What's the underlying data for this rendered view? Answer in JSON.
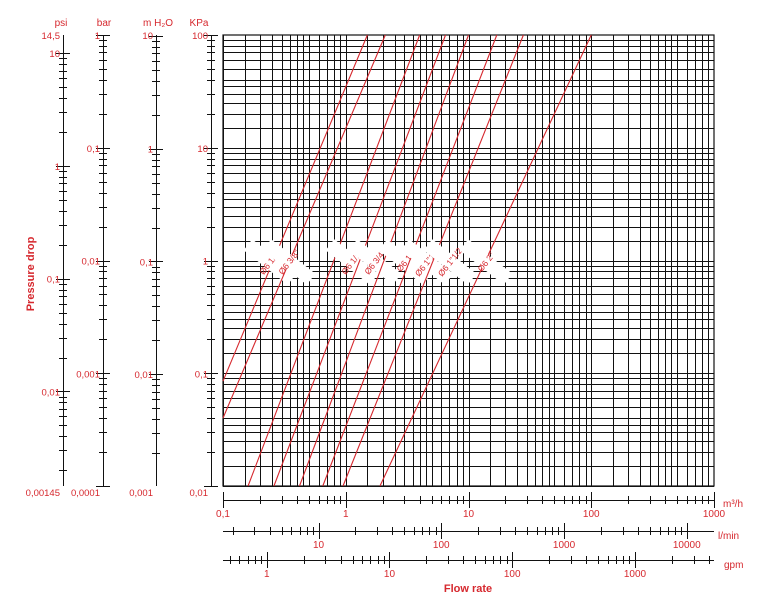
{
  "chart_data": {
    "type": "line",
    "title": "",
    "xlabel": "Flow rate",
    "ylabel": "Pressure drop",
    "log_x": true,
    "log_y": true,
    "grid": true,
    "xlim": [
      0.1,
      1000
    ],
    "ylim": [
      0.01,
      100
    ],
    "x_unit": "m³/h",
    "y_unit": "KPa",
    "y_axes": [
      {
        "unit": "psi",
        "ticks": [
          "14,5",
          "10",
          "1",
          "0,1",
          "0,01",
          "0,00145"
        ]
      },
      {
        "unit": "bar",
        "ticks": [
          "1",
          "0,1",
          "0,01",
          "0,001",
          "0,0001"
        ]
      },
      {
        "unit": "m H₂O",
        "ticks": [
          "10",
          "1",
          "0,1",
          "0,01",
          "0,001"
        ]
      },
      {
        "unit": "KPa",
        "ticks": [
          "100",
          "10",
          "1",
          "0,1",
          "0,01"
        ]
      }
    ],
    "x_axes": [
      {
        "unit": "m³/h",
        "ticks": [
          "0,1",
          "1",
          "10",
          "100",
          "1000"
        ]
      },
      {
        "unit": "l/min",
        "ticks": [
          "10",
          "100",
          "1000",
          "10000"
        ]
      },
      {
        "unit": "gpm",
        "ticks": [
          "1",
          "10",
          "100",
          "1000"
        ]
      }
    ],
    "series": [
      {
        "name": "Ø6 1/4\"",
        "x": [
          0.1,
          1.5
        ],
        "y": [
          0.085,
          100
        ]
      },
      {
        "name": "Ø6 3/8\"",
        "x": [
          0.1,
          2.1
        ],
        "y": [
          0.04,
          100
        ]
      },
      {
        "name": "Ø6 1/2\"",
        "x": [
          0.16,
          4.0
        ],
        "y": [
          0.01,
          100
        ]
      },
      {
        "name": "Ø6 3/4\"",
        "x": [
          0.26,
          6.5
        ],
        "y": [
          0.01,
          100
        ]
      },
      {
        "name": "Ø6 1\"",
        "x": [
          0.42,
          10
        ],
        "y": [
          0.01,
          100
        ]
      },
      {
        "name": "Ø6 1\"1/4",
        "x": [
          0.65,
          17
        ],
        "y": [
          0.01,
          100
        ]
      },
      {
        "name": "Ø6 1\"1/2",
        "x": [
          0.95,
          28
        ],
        "y": [
          0.01,
          100
        ]
      },
      {
        "name": "Ø6 2\"",
        "x": [
          1.9,
          100
        ],
        "y": [
          0.01,
          100
        ]
      }
    ]
  },
  "colors": {
    "accent": "#d6282e",
    "ink": "#111111"
  }
}
